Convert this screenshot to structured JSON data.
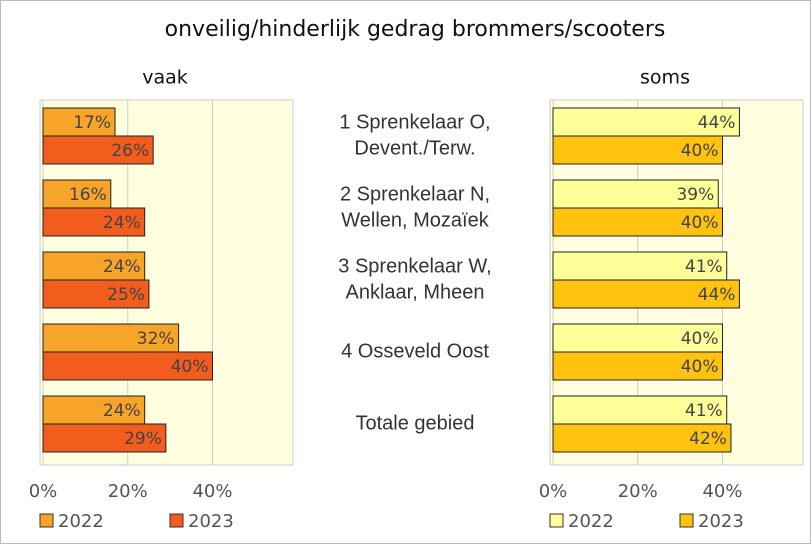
{
  "chart_data": {
    "type": "bar",
    "title": "onveilig/hinderlijk gedrag brommers/scooters",
    "categories": [
      [
        "1 Sprenkelaar O,",
        "Devent./Terw."
      ],
      [
        "2 Sprenkelaar N,",
        "Wellen, Mozaïek"
      ],
      [
        "3 Sprenkelaar W,",
        "Anklaar, Mheen"
      ],
      [
        "4 Osseveld Oost"
      ],
      [
        "Totale gebied"
      ]
    ],
    "grid": true,
    "panels": [
      {
        "title": "vaak",
        "xlim": [
          0,
          59
        ],
        "xticks": [
          {
            "value": 0,
            "label": "0%"
          },
          {
            "value": 20,
            "label": "20%"
          },
          {
            "value": 40,
            "label": "40%"
          }
        ],
        "series": [
          {
            "name": "2022",
            "color": "#f7a428",
            "values": [
              17,
              16,
              24,
              32,
              24
            ],
            "value_labels": [
              "17%",
              "16%",
              "24%",
              "32%",
              "24%"
            ]
          },
          {
            "name": "2023",
            "color": "#f25c1c",
            "values": [
              26,
              24,
              25,
              40,
              29
            ],
            "value_labels": [
              "26%",
              "24%",
              "25%",
              "40%",
              "29%"
            ]
          }
        ]
      },
      {
        "title": "soms",
        "xlim": [
          0,
          59
        ],
        "xticks": [
          {
            "value": 0,
            "label": "0%"
          },
          {
            "value": 20,
            "label": "20%"
          },
          {
            "value": 40,
            "label": "40%"
          }
        ],
        "series": [
          {
            "name": "2022",
            "color": "#ffff99",
            "values": [
              44,
              39,
              41,
              40,
              41
            ],
            "value_labels": [
              "44%",
              "39%",
              "41%",
              "40%",
              "41%"
            ]
          },
          {
            "name": "2023",
            "color": "#ffc20e",
            "values": [
              40,
              40,
              44,
              40,
              42
            ],
            "value_labels": [
              "40%",
              "40%",
              "44%",
              "40%",
              "42%"
            ]
          }
        ]
      }
    ]
  }
}
